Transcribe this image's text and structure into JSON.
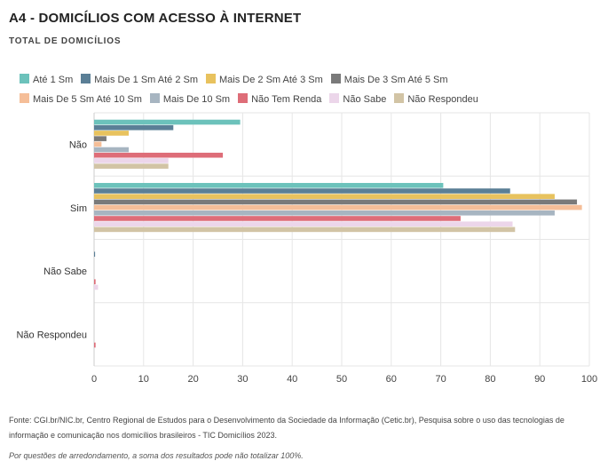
{
  "chart_data": {
    "type": "bar",
    "orientation": "horizontal",
    "title": "A4 - DOMICÍLIOS COM ACESSO À INTERNET",
    "subtitle": "TOTAL DE DOMICÍLIOS",
    "categories": [
      "Não",
      "Sim",
      "Não Sabe",
      "Não Respondeu"
    ],
    "xlim": [
      0,
      100
    ],
    "xticks": [
      0,
      10,
      20,
      30,
      40,
      50,
      60,
      70,
      80,
      90,
      100
    ],
    "grid": true,
    "legend_position": "top",
    "series": [
      {
        "name": "Até 1 Sm",
        "color": "#6cc2bb",
        "values": [
          29.5,
          70.5,
          0,
          0
        ]
      },
      {
        "name": "Mais De 1 Sm Até 2 Sm",
        "color": "#5b7f96",
        "values": [
          16,
          84,
          0.2,
          0
        ]
      },
      {
        "name": "Mais De 2 Sm Até 3 Sm",
        "color": "#e8c25e",
        "values": [
          7,
          93,
          0,
          0
        ]
      },
      {
        "name": "Mais De 3 Sm Até 5 Sm",
        "color": "#7a7a7a",
        "values": [
          2.5,
          97.5,
          0,
          0
        ]
      },
      {
        "name": "Mais De 5 Sm Até 10 Sm",
        "color": "#f5be98",
        "values": [
          1.5,
          98.5,
          0,
          0
        ]
      },
      {
        "name": "Mais De 10 Sm",
        "color": "#a7b5c1",
        "values": [
          7,
          93,
          0,
          0
        ]
      },
      {
        "name": "Não Tem Renda",
        "color": "#de6d78",
        "values": [
          26,
          74,
          0.3,
          0.3
        ]
      },
      {
        "name": "Não Sabe",
        "color": "#ecd6ea",
        "values": [
          15,
          84.5,
          0.8,
          0
        ]
      },
      {
        "name": "Não Respondeu",
        "color": "#d2c4a5",
        "values": [
          15,
          85,
          0,
          0
        ]
      }
    ]
  },
  "footer": {
    "source": "Fonte: CGI.br/NIC.br, Centro Regional de Estudos para o Desenvolvimento da Sociedade da Informação (Cetic.br), Pesquisa sobre o uso das tecnologias de informação e comunicação nos domicílios brasileiros - TIC Domicílios 2023.",
    "note": "Por questões de arredondamento, a soma dos resultados pode não totalizar 100%."
  }
}
